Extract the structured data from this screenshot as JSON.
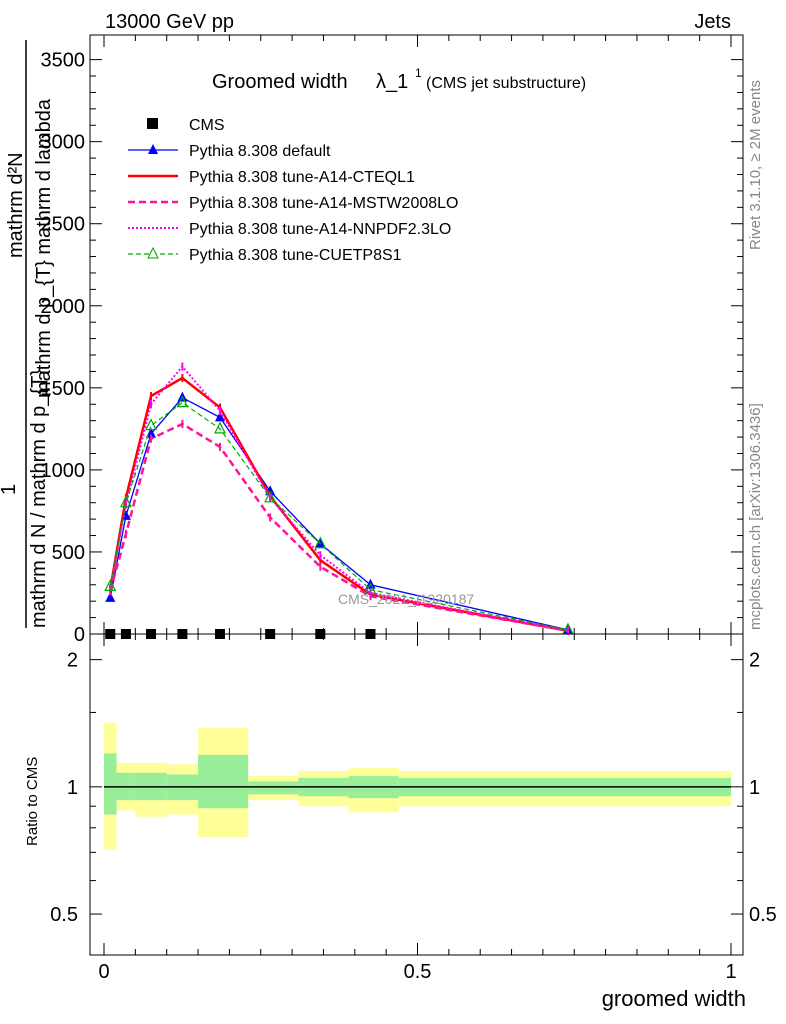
{
  "header": {
    "left": "13000 GeV pp",
    "right": "Jets"
  },
  "side_labels": {
    "rivet": "Rivet 3.1.10, ≥ 2M events",
    "mcplots": "mcplots.cern.ch [arXiv:1306.3436]"
  },
  "watermark": "CMS_2021_I1920187",
  "chart_data": [
    {
      "type": "line",
      "title": "Groomed width",
      "title_symbol": "λ_1",
      "title_sup": "1",
      "subtitle": "(CMS jet substructure)",
      "ylabel_top": "mathrm d²N",
      "ylabel_top2": "mathrm d p_{T} mathrm d lambda",
      "ylabel_num": "1",
      "ylabel_den": "mathrm d N / mathrm d p_{T}",
      "xlim": [
        0,
        1
      ],
      "ylim": [
        0,
        3650
      ],
      "yticks": [
        0,
        500,
        1000,
        1500,
        2000,
        2500,
        3000,
        3500
      ],
      "ytick_labels": [
        "0",
        "500",
        "1000",
        "1500",
        "2000",
        "2500",
        "3000",
        "3500"
      ],
      "legend_position": "top-left",
      "x": [
        0.01,
        0.035,
        0.075,
        0.125,
        0.185,
        0.265,
        0.345,
        0.425,
        0.74
      ],
      "series": [
        {
          "name": "CMS",
          "color": "#000000",
          "style": "marker-square",
          "values": [
            0,
            0,
            0,
            0,
            0,
            0,
            0,
            0,
            null
          ]
        },
        {
          "name": "Pythia 8.308 default",
          "color": "#0000ff",
          "style": "solid-triangle",
          "values": [
            220,
            720,
            1220,
            1440,
            1320,
            870,
            550,
            300,
            25
          ]
        },
        {
          "name": "Pythia 8.308 tune-A14-CTEQL1",
          "color": "#ff0000",
          "style": "thick-solid",
          "values": [
            275,
            830,
            1450,
            1560,
            1380,
            840,
            450,
            240,
            20
          ]
        },
        {
          "name": "Pythia 8.308 tune-A14-MSTW2008LO",
          "color": "#ff1493",
          "style": "dashed",
          "values": [
            260,
            610,
            1190,
            1280,
            1140,
            710,
            410,
            230,
            20
          ]
        },
        {
          "name": "Pythia 8.308 tune-A14-NNPDF2.3LO",
          "color": "#ff00ff",
          "style": "dotted",
          "values": [
            280,
            790,
            1400,
            1630,
            1360,
            830,
            480,
            250,
            20
          ]
        },
        {
          "name": "Pythia 8.308 tune-CUETP8S1",
          "color": "#00aa00",
          "style": "dashed-open-triangle",
          "values": [
            290,
            800,
            1270,
            1410,
            1250,
            830,
            550,
            270,
            25
          ]
        }
      ]
    },
    {
      "type": "area",
      "ylabel": "Ratio to CMS",
      "xlabel": "groomed width",
      "xlim": [
        0,
        1
      ],
      "xticks": [
        0,
        0.5,
        1
      ],
      "xtick_labels": [
        "0",
        "0.5",
        "1"
      ],
      "ylim": [
        0.4,
        2.3
      ],
      "yticks": [
        0.5,
        1,
        2
      ],
      "ytick_labels": [
        "0.5",
        "1",
        "2"
      ],
      "bins": [
        {
          "x0": 0.0,
          "x1": 0.02,
          "yellow": [
            0.71,
            1.42
          ],
          "green": [
            0.86,
            1.2
          ]
        },
        {
          "x0": 0.02,
          "x1": 0.05,
          "yellow": [
            0.88,
            1.14
          ],
          "green": [
            0.93,
            1.08
          ]
        },
        {
          "x0": 0.05,
          "x1": 0.1,
          "yellow": [
            0.85,
            1.14
          ],
          "green": [
            0.93,
            1.08
          ]
        },
        {
          "x0": 0.1,
          "x1": 0.15,
          "yellow": [
            0.86,
            1.13
          ],
          "green": [
            0.93,
            1.07
          ]
        },
        {
          "x0": 0.15,
          "x1": 0.23,
          "yellow": [
            0.76,
            1.38
          ],
          "green": [
            0.89,
            1.19
          ]
        },
        {
          "x0": 0.23,
          "x1": 0.31,
          "yellow": [
            0.93,
            1.06
          ],
          "green": [
            0.96,
            1.03
          ]
        },
        {
          "x0": 0.31,
          "x1": 0.39,
          "yellow": [
            0.9,
            1.09
          ],
          "green": [
            0.95,
            1.05
          ]
        },
        {
          "x0": 0.39,
          "x1": 0.47,
          "yellow": [
            0.87,
            1.11
          ],
          "green": [
            0.94,
            1.06
          ]
        },
        {
          "x0": 0.47,
          "x1": 1.0,
          "yellow": [
            0.9,
            1.09
          ],
          "green": [
            0.95,
            1.05
          ]
        }
      ],
      "reference_line": 1
    }
  ]
}
